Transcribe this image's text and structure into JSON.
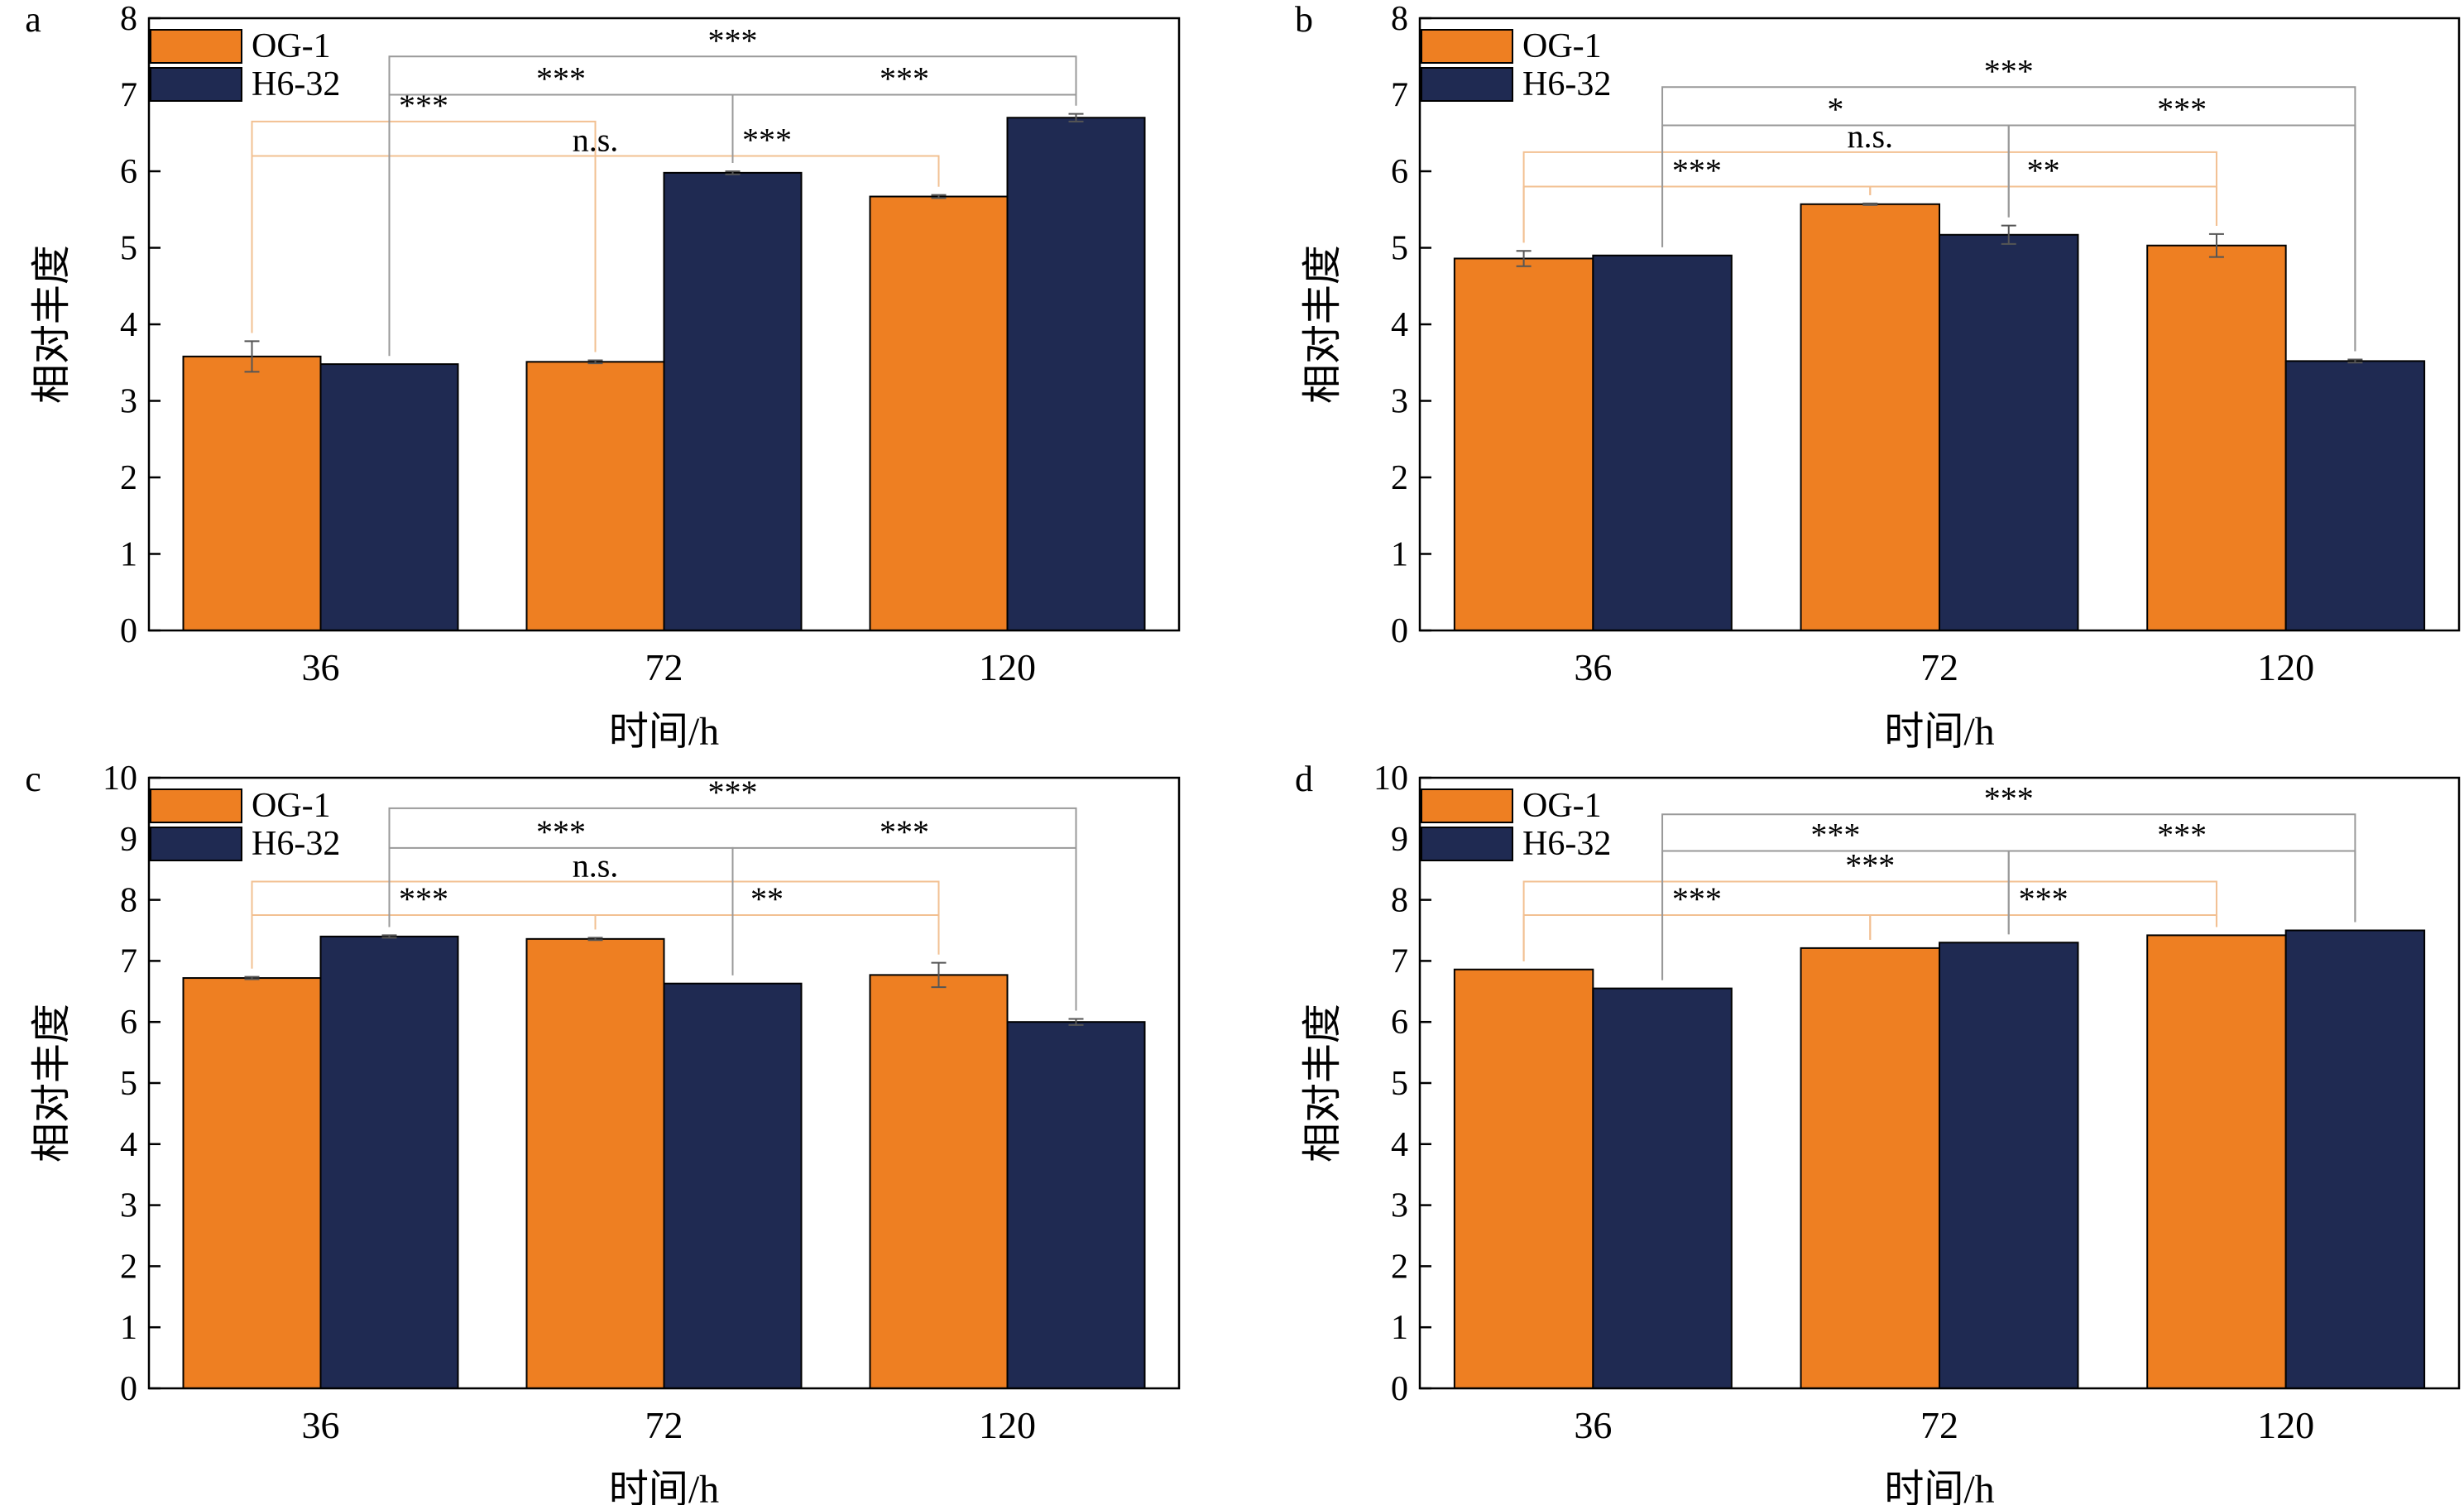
{
  "figure": {
    "x_label": "时间/h",
    "y_label": "相对丰度",
    "legend": [
      "OG-1",
      "H6-32"
    ],
    "colors": {
      "og1": "#ee7f22",
      "h632": "#1f2a52",
      "bracket_og1": "#f2c092",
      "bracket_h632": "#999999"
    }
  },
  "chart_data": [
    {
      "panel": "a",
      "type": "bar",
      "categories": [
        "36",
        "72",
        "120"
      ],
      "series": [
        {
          "name": "OG-1",
          "values": [
            3.58,
            3.51,
            5.67
          ],
          "errors": [
            0.2,
            0.02,
            0.02
          ]
        },
        {
          "name": "H6-32",
          "values": [
            3.48,
            5.98,
            6.7
          ],
          "errors": [
            0.0,
            0.02,
            0.05
          ]
        }
      ],
      "ylim": [
        0,
        8
      ],
      "yticks": [
        0,
        1,
        2,
        3,
        4,
        5,
        6,
        7,
        8
      ],
      "xlabel": "时间/h",
      "ylabel": "相对丰度",
      "legend_position": "top-left",
      "comparisons": [
        {
          "series": "OG-1",
          "from": "36",
          "to": "72",
          "label": "***",
          "y": 6.65
        },
        {
          "series": "OG-1",
          "from": "36",
          "to": "120",
          "label": "n.s.",
          "y": 6.2
        },
        {
          "series": "OG-1",
          "from": "72",
          "to": "120",
          "label": "***",
          "y": 6.2
        },
        {
          "series": "H6-32",
          "from": "36",
          "to": "120",
          "label": "***",
          "y": 7.5
        },
        {
          "series": "H6-32",
          "from": "36",
          "to": "72",
          "label": "***",
          "y": 7.0
        },
        {
          "series": "H6-32",
          "from": "72",
          "to": "120",
          "label": "***",
          "y": 7.0
        }
      ]
    },
    {
      "panel": "b",
      "type": "bar",
      "categories": [
        "36",
        "72",
        "120"
      ],
      "series": [
        {
          "name": "OG-1",
          "values": [
            4.86,
            5.57,
            5.03
          ],
          "errors": [
            0.1,
            0.01,
            0.15
          ]
        },
        {
          "name": "H6-32",
          "values": [
            4.9,
            5.17,
            3.52
          ],
          "errors": [
            0.0,
            0.12,
            0.02
          ]
        }
      ],
      "ylim": [
        0,
        8
      ],
      "yticks": [
        0,
        1,
        2,
        3,
        4,
        5,
        6,
        7,
        8
      ],
      "xlabel": "时间/h",
      "ylabel": "相对丰度",
      "legend_position": "top-left",
      "comparisons": [
        {
          "series": "OG-1",
          "from": "36",
          "to": "120",
          "label": "n.s.",
          "y": 6.25
        },
        {
          "series": "OG-1",
          "from": "36",
          "to": "72",
          "label": "***",
          "y": 5.8
        },
        {
          "series": "OG-1",
          "from": "72",
          "to": "120",
          "label": "**",
          "y": 5.8
        },
        {
          "series": "H6-32",
          "from": "36",
          "to": "120",
          "label": "***",
          "y": 7.1
        },
        {
          "series": "H6-32",
          "from": "36",
          "to": "72",
          "label": "*",
          "y": 6.6
        },
        {
          "series": "H6-32",
          "from": "72",
          "to": "120",
          "label": "***",
          "y": 6.6
        }
      ]
    },
    {
      "panel": "c",
      "type": "bar",
      "categories": [
        "36",
        "72",
        "120"
      ],
      "series": [
        {
          "name": "OG-1",
          "values": [
            6.72,
            7.36,
            6.77
          ],
          "errors": [
            0.02,
            0.02,
            0.2
          ]
        },
        {
          "name": "H6-32",
          "values": [
            7.4,
            6.63,
            6.0
          ],
          "errors": [
            0.02,
            0.0,
            0.05
          ]
        }
      ],
      "ylim": [
        0,
        10
      ],
      "yticks": [
        0,
        1,
        2,
        3,
        4,
        5,
        6,
        7,
        8,
        9,
        10
      ],
      "xlabel": "时间/h",
      "ylabel": "相对丰度",
      "legend_position": "top-left",
      "comparisons": [
        {
          "series": "OG-1",
          "from": "36",
          "to": "120",
          "label": "n.s.",
          "y": 8.3
        },
        {
          "series": "OG-1",
          "from": "36",
          "to": "72",
          "label": "***",
          "y": 7.75
        },
        {
          "series": "OG-1",
          "from": "72",
          "to": "120",
          "label": "**",
          "y": 7.75
        },
        {
          "series": "H6-32",
          "from": "36",
          "to": "120",
          "label": "***",
          "y": 9.5
        },
        {
          "series": "H6-32",
          "from": "36",
          "to": "72",
          "label": "***",
          "y": 8.85
        },
        {
          "series": "H6-32",
          "from": "72",
          "to": "120",
          "label": "***",
          "y": 8.85
        }
      ]
    },
    {
      "panel": "d",
      "type": "bar",
      "categories": [
        "36",
        "72",
        "120"
      ],
      "series": [
        {
          "name": "OG-1",
          "values": [
            6.86,
            7.21,
            7.42
          ],
          "errors": [
            0.0,
            0.0,
            0.0
          ]
        },
        {
          "name": "H6-32",
          "values": [
            6.55,
            7.3,
            7.5
          ],
          "errors": [
            0.0,
            0.0,
            0.0
          ]
        }
      ],
      "ylim": [
        0,
        10
      ],
      "yticks": [
        0,
        1,
        2,
        3,
        4,
        5,
        6,
        7,
        8,
        9,
        10
      ],
      "xlabel": "时间/h",
      "ylabel": "相对丰度",
      "legend_position": "top-left",
      "comparisons": [
        {
          "series": "OG-1",
          "from": "36",
          "to": "120",
          "label": "***",
          "y": 8.3
        },
        {
          "series": "OG-1",
          "from": "36",
          "to": "72",
          "label": "***",
          "y": 7.75
        },
        {
          "series": "OG-1",
          "from": "72",
          "to": "120",
          "label": "***",
          "y": 7.75
        },
        {
          "series": "H6-32",
          "from": "36",
          "to": "120",
          "label": "***",
          "y": 9.4
        },
        {
          "series": "H6-32",
          "from": "36",
          "to": "72",
          "label": "***",
          "y": 8.8
        },
        {
          "series": "H6-32",
          "from": "72",
          "to": "120",
          "label": "***",
          "y": 8.8
        }
      ]
    }
  ]
}
